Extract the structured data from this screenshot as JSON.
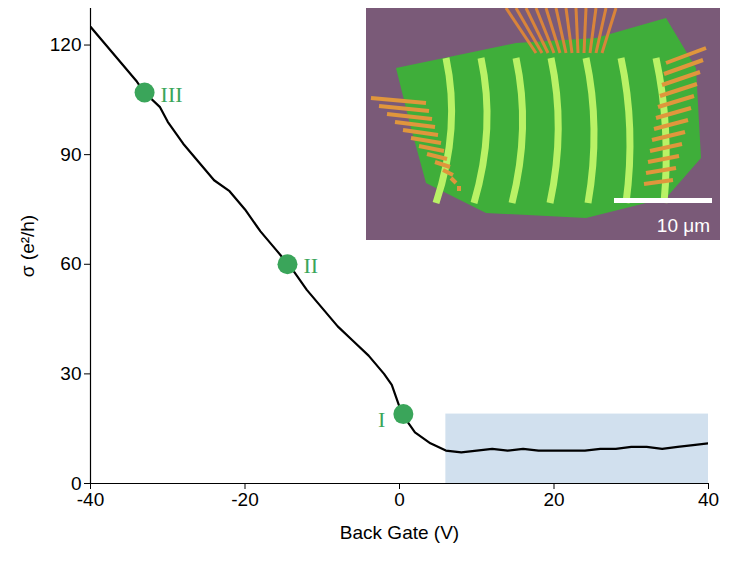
{
  "chart_data": {
    "type": "line",
    "x_label": "Back Gate (V)",
    "y_label": "σ (e²/h)",
    "xlim": [
      -40,
      40
    ],
    "xticks": [
      -40,
      -20,
      0,
      20,
      40
    ],
    "ylim": [
      0,
      130
    ],
    "yticks": [
      0,
      30,
      60,
      90,
      120
    ],
    "color": "#000000",
    "x": [
      -40,
      -38,
      -36,
      -34,
      -33,
      -31,
      -30,
      -28,
      -26,
      -24,
      -22,
      -20,
      -18,
      -16,
      -14,
      -12,
      -10,
      -8,
      -6,
      -4,
      -2,
      -1,
      0,
      1,
      2,
      4,
      6,
      8,
      10,
      12,
      14,
      16,
      18,
      20,
      22,
      24,
      26,
      28,
      30,
      32,
      34,
      36,
      38,
      40
    ],
    "values": [
      125,
      120,
      115,
      110,
      107,
      103,
      99,
      93,
      88,
      83,
      80,
      75,
      69,
      64,
      59,
      53,
      48,
      43,
      39,
      35,
      30,
      27,
      21,
      17,
      14,
      11,
      9,
      8.5,
      9,
      9.5,
      9,
      9.5,
      9,
      9,
      9,
      9,
      9.5,
      9.5,
      10,
      10,
      9.5,
      10,
      10.5,
      11
    ],
    "points": [
      {
        "label": "I",
        "x": 0.5,
        "y": 19
      },
      {
        "label": "II",
        "x": -14.5,
        "y": 60
      },
      {
        "label": "III",
        "x": -33,
        "y": 107
      }
    ],
    "points_color": "#3aa55a",
    "shaded_region": {
      "x": [
        6,
        40
      ],
      "y": [
        0,
        19
      ],
      "color": "#c9dbeb"
    },
    "inset": {
      "scale_bar_label": "10 μm"
    }
  }
}
